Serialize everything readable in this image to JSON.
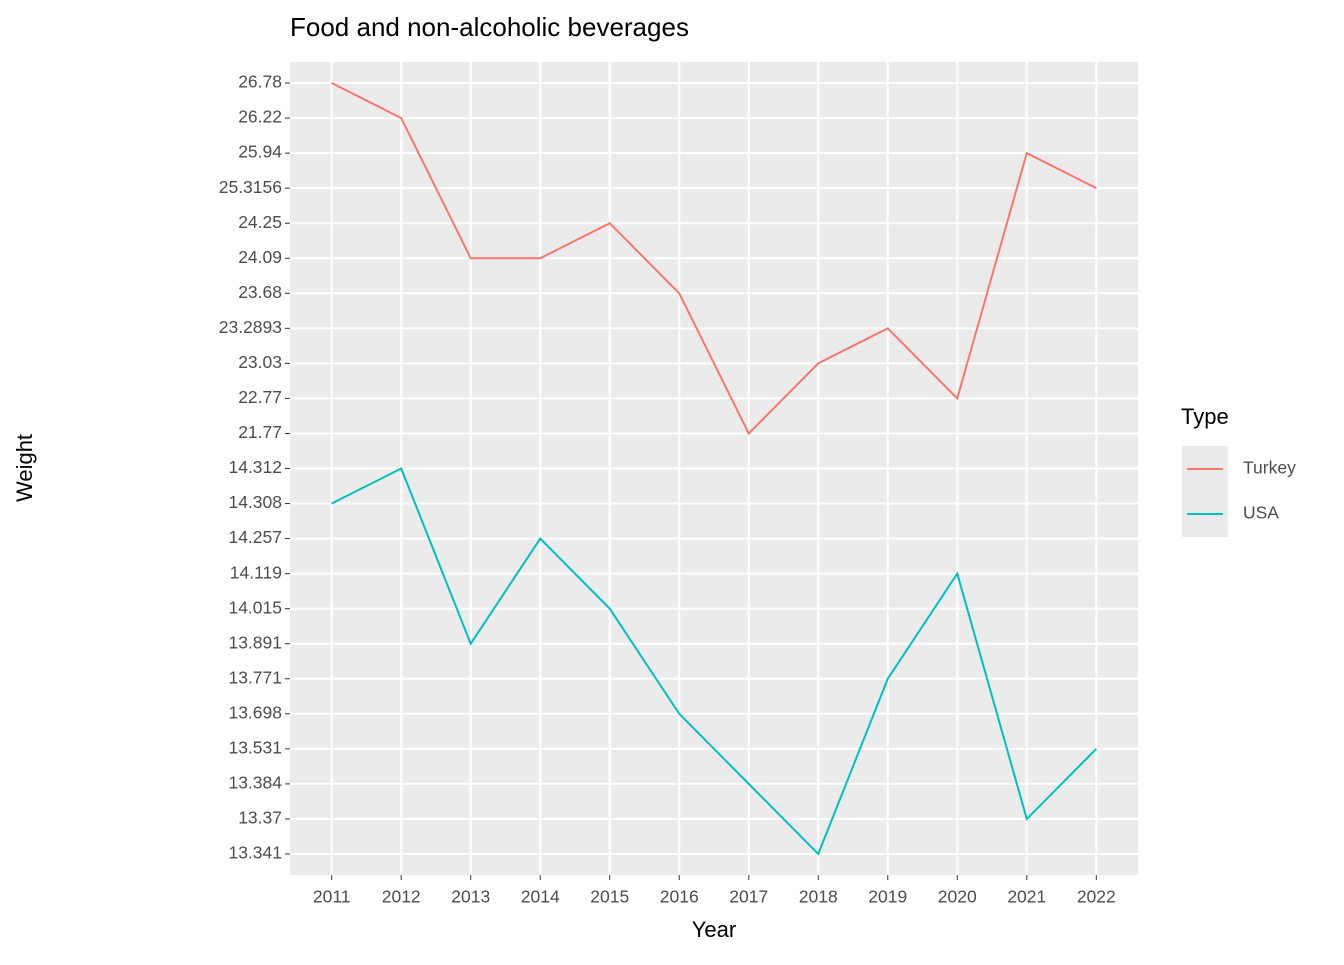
{
  "chart_data": {
    "type": "line",
    "title": "Food and non-alcoholic beverages",
    "x_label": "Year",
    "y_label": "Weight",
    "legend_title": "Type",
    "categories": [
      "2011",
      "2012",
      "2013",
      "2014",
      "2015",
      "2016",
      "2017",
      "2018",
      "2019",
      "2020",
      "2021",
      "2022"
    ],
    "yscale": "discrete",
    "yticks": [
      13.341,
      13.37,
      13.384,
      13.531,
      13.698,
      13.771,
      13.891,
      14.015,
      14.119,
      14.257,
      14.308,
      14.312,
      21.77,
      22.77,
      23.03,
      23.2893,
      23.68,
      24.09,
      24.25,
      25.3156,
      25.94,
      26.22,
      26.78
    ],
    "grid": true,
    "legend": "right",
    "series": [
      {
        "name": "Turkey",
        "color": "#F8766D",
        "values": [
          26.78,
          26.22,
          24.09,
          24.09,
          24.25,
          23.68,
          21.77,
          23.03,
          23.2893,
          22.77,
          25.94,
          25.3156
        ]
      },
      {
        "name": "USA",
        "color": "#00BFC4",
        "values": [
          14.308,
          14.312,
          13.891,
          14.257,
          14.015,
          13.698,
          13.384,
          13.341,
          13.771,
          14.119,
          13.37,
          13.531
        ]
      }
    ]
  }
}
